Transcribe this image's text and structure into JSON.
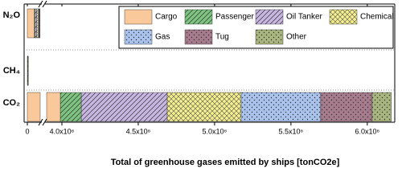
{
  "chart_data": {
    "type": "bar",
    "orientation": "horizontal",
    "stacked": true,
    "xlabel": "Total of greenhouse gases emitted by ships [tonCO2e]",
    "categories": [
      "N₂O",
      "CH₄",
      "CO₂"
    ],
    "x_segments": [
      {
        "xlim": [
          -5000,
          20000
        ],
        "xticks": [
          0
        ]
      },
      {
        "xlim": [
          3900000,
          6180000
        ],
        "xticks": [
          {
            "value": 4000000,
            "label": "4.0x10⁶"
          },
          {
            "value": 4500000,
            "label": "4.5x10⁶"
          },
          {
            "value": 5000000,
            "label": "5.0x10⁶"
          },
          {
            "value": 5500000,
            "label": "5.5x10⁶"
          },
          {
            "value": 6000000,
            "label": "6.0x10⁶"
          }
        ]
      }
    ],
    "series": [
      {
        "name": "Cargo",
        "color": "#f9c89b",
        "pattern": "solid",
        "values": [
          11000,
          300,
          3990000
        ]
      },
      {
        "name": "Passenger",
        "color": "#7cc47f",
        "pattern": "hatch",
        "values": [
          1000,
          20,
          137000
        ]
      },
      {
        "name": "Oil Tanker",
        "color": "#c8b6e2",
        "pattern": "hatch",
        "values": [
          2500,
          60,
          563000
        ]
      },
      {
        "name": "Chemical",
        "color": "#f4ef8c",
        "pattern": "cross",
        "values": [
          2000,
          50,
          484000
        ]
      },
      {
        "name": "Gas",
        "color": "#a9c3ec",
        "pattern": "dots",
        "values": [
          1500,
          40,
          521000
        ]
      },
      {
        "name": "Tug",
        "color": "#a67b8c",
        "pattern": "dots",
        "values": [
          1000,
          30,
          337000
        ]
      },
      {
        "name": "Other",
        "color": "#a9b57e",
        "pattern": "dots",
        "values": [
          600,
          20,
          126000
        ]
      }
    ]
  }
}
